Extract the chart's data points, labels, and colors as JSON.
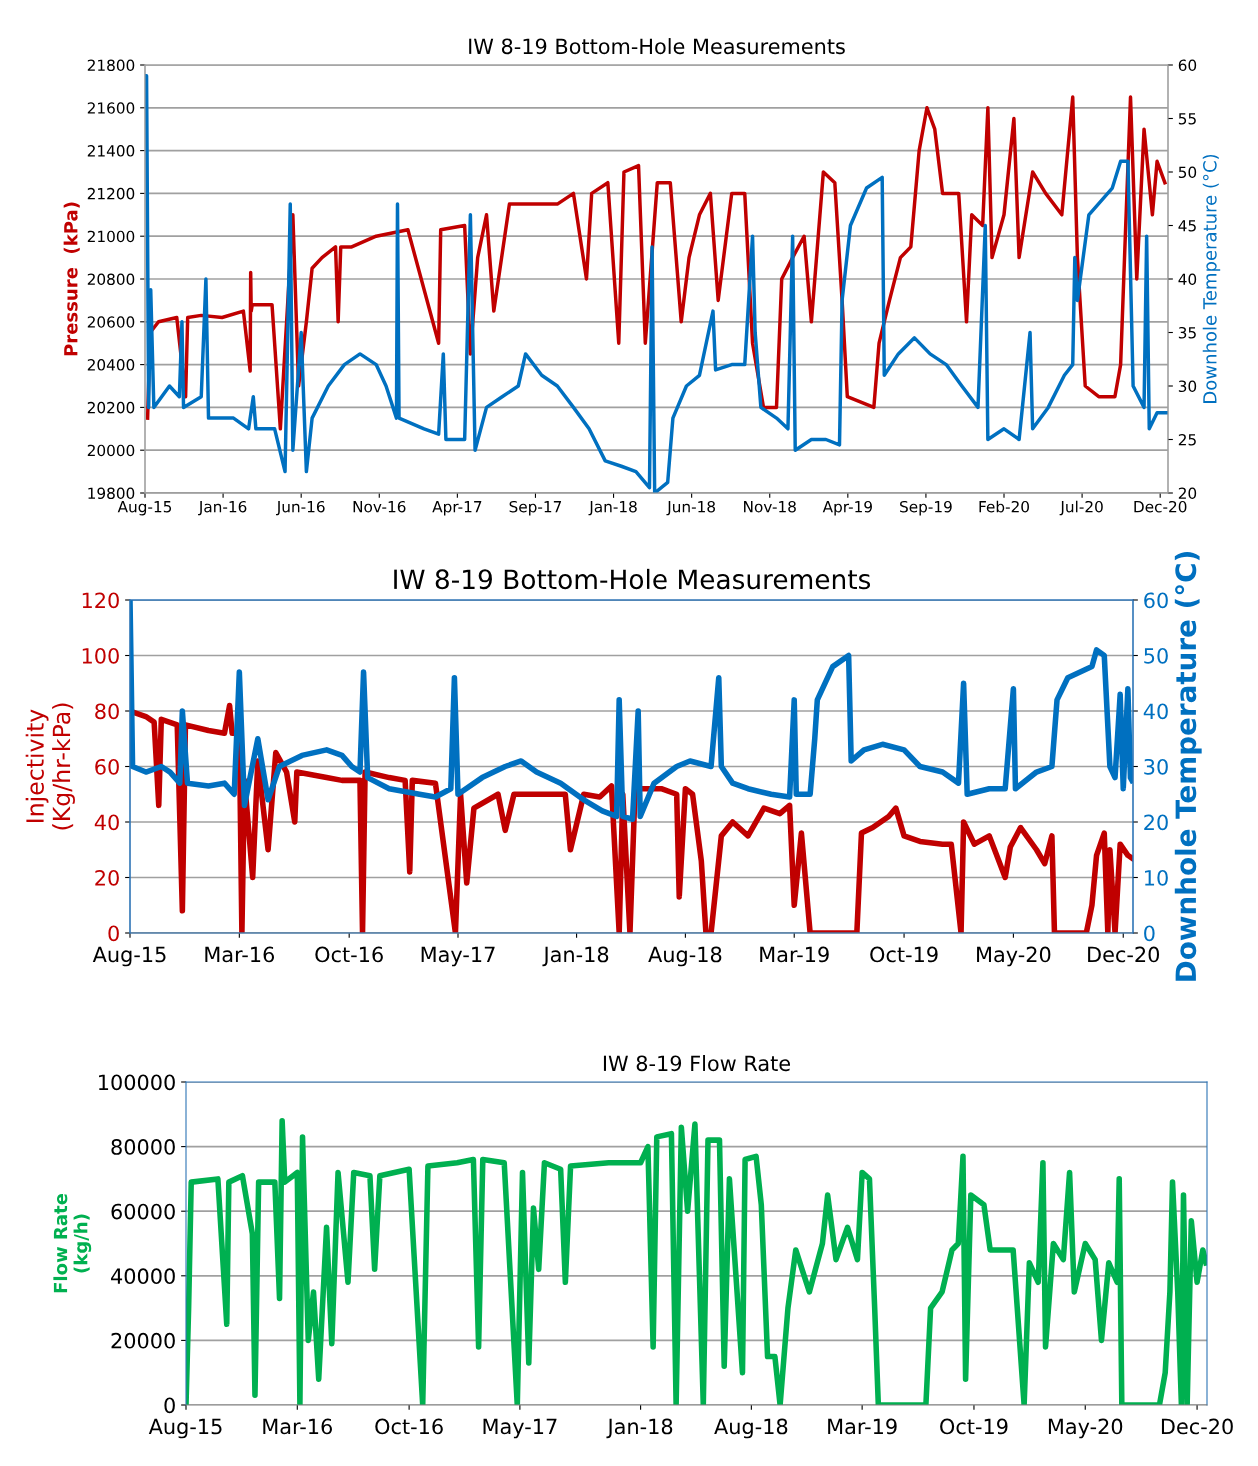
{
  "chart_data": [
    {
      "type": "line",
      "title": "IW 8-19 Bottom-Hole Measurements",
      "ylabel": "Pressure  (kPa)",
      "y2label": "Downhole Temperature (°C)",
      "grid": "y",
      "xlim": [
        "2015-08-15",
        "2020-12-31"
      ],
      "xticks": [
        {
          "value": "2015-08-15",
          "label": "Aug-15"
        },
        {
          "value": "2016-01-12",
          "label": "Jan-16"
        },
        {
          "value": "2016-06-10",
          "label": "Jun-16"
        },
        {
          "value": "2016-11-07",
          "label": "Nov-16"
        },
        {
          "value": "2017-04-06",
          "label": "Apr-17"
        },
        {
          "value": "2017-09-03",
          "label": "Sep-17"
        },
        {
          "value": "2018-01-31",
          "label": "Jan-18"
        },
        {
          "value": "2018-06-30",
          "label": "Jun-18"
        },
        {
          "value": "2018-11-27",
          "label": "Nov-18"
        },
        {
          "value": "2019-04-26",
          "label": "Apr-19"
        },
        {
          "value": "2019-09-23",
          "label": "Sep-19"
        },
        {
          "value": "2020-02-20",
          "label": "Feb-20"
        },
        {
          "value": "2020-07-19",
          "label": "Jul-20"
        },
        {
          "value": "2020-12-16",
          "label": "Dec-20"
        }
      ],
      "ylim": [
        19800,
        21800
      ],
      "yticks": [
        19800,
        20000,
        20200,
        20400,
        20600,
        20800,
        21000,
        21200,
        21400,
        21600,
        21800
      ],
      "y2lim": [
        20,
        60
      ],
      "y2ticks": [
        20,
        25,
        30,
        35,
        40,
        45,
        50,
        55,
        60
      ],
      "series": [
        {
          "color": "#c00000",
          "x": [
            "2015-08-20",
            "2015-08-25",
            "2015-09-10",
            "2015-10-15",
            "2015-11-01",
            "2015-11-05",
            "2015-12-01",
            "2016-01-10",
            "2016-02-20",
            "2016-03-04",
            "2016-03-05",
            "2016-03-06",
            "2016-03-08",
            "2016-04-15",
            "2016-05-01",
            "2016-05-25",
            "2016-06-05",
            "2016-06-20",
            "2016-07-01",
            "2016-07-20",
            "2016-08-15",
            "2016-08-20",
            "2016-08-25",
            "2016-09-15",
            "2016-11-01",
            "2017-01-01",
            "2017-03-01",
            "2017-03-05",
            "2017-04-20",
            "2017-05-01",
            "2017-05-15",
            "2017-06-01",
            "2017-06-15",
            "2017-07-15",
            "2017-08-15",
            "2017-09-15",
            "2017-10-15",
            "2017-11-15",
            "2017-12-10",
            "2017-12-20",
            "2018-01-20",
            "2018-02-10",
            "2018-02-20",
            "2018-03-20",
            "2018-04-02",
            "2018-04-25",
            "2018-05-20",
            "2018-06-10",
            "2018-06-25",
            "2018-07-15",
            "2018-08-05",
            "2018-08-20",
            "2018-09-15",
            "2018-10-10",
            "2018-10-25",
            "2018-11-15",
            "2018-12-10",
            "2018-12-20",
            "2019-01-10",
            "2019-02-01",
            "2019-02-15",
            "2019-03-10",
            "2019-04-01",
            "2019-04-15",
            "2019-04-25",
            "2019-06-15",
            "2019-06-25",
            "2019-07-15",
            "2019-08-05",
            "2019-08-25",
            "2019-09-10",
            "2019-09-25",
            "2019-10-10",
            "2019-10-25",
            "2019-11-25",
            "2019-12-10",
            "2019-12-20",
            "2020-01-10",
            "2020-01-20",
            "2020-01-28",
            "2020-02-20",
            "2020-03-10",
            "2020-03-20",
            "2020-04-15",
            "2020-05-10",
            "2020-06-10",
            "2020-07-01",
            "2020-07-10",
            "2020-07-25",
            "2020-08-20",
            "2020-09-20",
            "2020-10-01",
            "2020-10-10",
            "2020-10-20",
            "2020-11-01",
            "2020-11-15",
            "2020-12-01",
            "2020-12-10",
            "2020-12-25"
          ],
          "values": [
            20150,
            20550,
            20600,
            20620,
            20250,
            20620,
            20630,
            20620,
            20650,
            20370,
            20830,
            20650,
            20680,
            20680,
            20100,
            21100,
            20300,
            20600,
            20850,
            20900,
            20950,
            20600,
            20950,
            20950,
            21000,
            21030,
            20500,
            21030,
            21050,
            20450,
            20900,
            21100,
            20650,
            21150,
            21150,
            21150,
            21150,
            21200,
            20800,
            21200,
            21250,
            20500,
            21300,
            21330,
            20500,
            21250,
            21250,
            20600,
            20900,
            21100,
            21200,
            20700,
            21200,
            21200,
            20500,
            20200,
            20200,
            20800,
            20900,
            21000,
            20600,
            21300,
            21250,
            20700,
            20250,
            20200,
            20500,
            20700,
            20900,
            20950,
            21400,
            21600,
            21500,
            21200,
            21200,
            20600,
            21100,
            21050,
            21600,
            20900,
            21100,
            21550,
            20900,
            21300,
            21200,
            21100,
            21650,
            20900,
            20300,
            20250,
            20250,
            20400,
            21000,
            21650,
            20800,
            21500,
            21100,
            21350,
            21250
          ]
        },
        {
          "color": "#0070c0",
          "axis": "y2",
          "x": [
            "2015-08-15",
            "2015-08-18",
            "2015-08-22",
            "2015-08-26",
            "2015-09-01",
            "2015-10-01",
            "2015-10-20",
            "2015-10-25",
            "2015-10-28",
            "2015-12-01",
            "2015-12-10",
            "2015-12-15",
            "2015-12-20",
            "2016-02-01",
            "2016-03-01",
            "2016-03-10",
            "2016-03-15",
            "2016-04-20",
            "2016-05-10",
            "2016-05-20",
            "2016-05-25",
            "2016-06-10",
            "2016-06-20",
            "2016-07-01",
            "2016-08-01",
            "2016-09-01",
            "2016-10-01",
            "2016-11-01",
            "2016-11-20",
            "2016-12-10",
            "2016-12-12",
            "2016-12-15",
            "2017-02-01",
            "2017-03-01",
            "2017-03-10",
            "2017-03-15",
            "2017-04-20",
            "2017-05-01",
            "2017-05-10",
            "2017-06-01",
            "2017-07-01",
            "2017-08-01",
            "2017-08-15",
            "2017-09-15",
            "2017-10-15",
            "2017-11-15",
            "2017-12-15",
            "2018-01-15",
            "2018-02-15",
            "2018-03-15",
            "2018-04-10",
            "2018-04-15",
            "2018-04-20",
            "2018-05-15",
            "2018-05-25",
            "2018-06-20",
            "2018-07-15",
            "2018-08-10",
            "2018-08-15",
            "2018-09-15",
            "2018-10-10",
            "2018-10-25",
            "2018-10-30",
            "2018-11-10",
            "2018-12-10",
            "2019-01-01",
            "2019-01-10",
            "2019-01-15",
            "2019-02-15",
            "2019-03-15",
            "2019-04-10",
            "2019-04-15",
            "2019-05-01",
            "2019-06-01",
            "2019-07-01",
            "2019-07-05",
            "2019-08-01",
            "2019-09-01",
            "2019-10-01",
            "2019-11-01",
            "2019-12-01",
            "2020-01-01",
            "2020-01-15",
            "2020-01-20",
            "2020-02-20",
            "2020-03-20",
            "2020-04-10",
            "2020-04-15",
            "2020-05-15",
            "2020-06-15",
            "2020-07-01",
            "2020-07-05",
            "2020-07-10",
            "2020-08-01",
            "2020-09-15",
            "2020-10-01",
            "2020-10-15",
            "2020-10-25",
            "2020-11-15",
            "2020-11-20",
            "2020-11-25",
            "2020-12-10",
            "2020-12-28"
          ],
          "values": [
            59,
            59,
            28,
            39,
            28,
            30,
            29,
            36,
            28,
            29,
            40,
            27,
            27,
            27,
            26,
            29,
            26,
            26,
            22,
            47,
            24,
            35,
            22,
            27,
            30,
            32,
            33,
            32,
            30,
            27,
            47,
            27,
            26,
            25.5,
            33,
            25,
            25,
            46,
            24,
            28,
            29,
            30,
            33,
            31,
            30,
            28,
            26,
            23,
            22.5,
            22,
            20.5,
            43,
            20,
            21,
            27,
            30,
            31,
            37,
            31.5,
            32,
            32,
            44,
            35,
            28,
            27,
            26,
            44,
            24,
            25,
            25,
            24.5,
            38,
            45,
            48.5,
            49.5,
            31,
            33,
            34.5,
            33,
            32,
            30,
            28,
            45,
            25,
            26,
            25,
            35,
            26,
            28,
            31,
            32,
            42,
            38,
            46,
            48.5,
            51,
            51,
            30,
            28,
            44,
            26,
            27.5,
            27.5
          ]
        }
      ]
    },
    {
      "type": "line",
      "title": "IW 8-19 Bottom-Hole Measurements",
      "ylabel": "Injectivity\n(Kg/hr-kPa)",
      "y2label": "Downhole Temperature (°C)",
      "grid": "y",
      "xlim": [
        "2015-08-15",
        "2020-12-20"
      ],
      "xticks": [
        {
          "value": "2015-08-15",
          "label": "Aug-15"
        },
        {
          "value": "2016-03-15",
          "label": "Mar-16"
        },
        {
          "value": "2016-10-15",
          "label": "Oct-16"
        },
        {
          "value": "2017-05-15",
          "label": "May-17"
        },
        {
          "value": "2018-01-01",
          "label": "Jan-18"
        },
        {
          "value": "2018-08-01",
          "label": "Aug-18"
        },
        {
          "value": "2019-03-01",
          "label": "Mar-19"
        },
        {
          "value": "2019-10-01",
          "label": "Oct-19"
        },
        {
          "value": "2020-05-01",
          "label": "May-20"
        },
        {
          "value": "2020-12-01",
          "label": "Dec-20"
        }
      ],
      "ylim": [
        0,
        120
      ],
      "yticks": [
        0,
        20,
        40,
        60,
        80,
        100,
        120
      ],
      "y2lim": [
        0,
        60
      ],
      "y2ticks": [
        0,
        10,
        20,
        30,
        40,
        50,
        60
      ],
      "series": [
        {
          "color": "#c00000",
          "x": [
            "2015-08-15",
            "2015-09-15",
            "2015-10-01",
            "2015-10-10",
            "2015-10-15",
            "2015-11-15",
            "2015-11-25",
            "2015-12-01",
            "2016-01-15",
            "2016-02-15",
            "2016-02-25",
            "2016-03-01",
            "2016-03-15",
            "2016-03-20",
            "2016-03-25",
            "2016-04-10",
            "2016-04-20",
            "2016-05-10",
            "2016-05-25",
            "2016-06-15",
            "2016-07-01",
            "2016-07-05",
            "2016-09-01",
            "2016-10-01",
            "2016-11-05",
            "2016-11-10",
            "2016-11-15",
            "2017-01-01",
            "2017-02-01",
            "2017-02-10",
            "2017-02-15",
            "2017-04-01",
            "2017-05-10",
            "2017-05-20",
            "2017-06-01",
            "2017-06-15",
            "2017-08-01",
            "2017-08-15",
            "2017-09-01",
            "2017-11-01",
            "2017-12-10",
            "2017-12-20",
            "2018-01-15",
            "2018-02-15",
            "2018-03-10",
            "2018-03-25",
            "2018-04-01",
            "2018-04-15",
            "2018-04-25",
            "2018-06-15",
            "2018-07-15",
            "2018-07-20",
            "2018-08-01",
            "2018-08-15",
            "2018-09-01",
            "2018-09-10",
            "2018-09-20",
            "2018-10-10",
            "2018-11-01",
            "2018-12-01",
            "2019-01-01",
            "2019-02-01",
            "2019-02-20",
            "2019-03-01",
            "2019-03-15",
            "2019-04-01",
            "2019-06-01",
            "2019-07-01",
            "2019-07-10",
            "2019-08-01",
            "2019-09-01",
            "2019-09-15",
            "2019-10-01",
            "2019-11-01",
            "2019-12-15",
            "2020-01-01",
            "2020-01-20",
            "2020-01-25",
            "2020-02-15",
            "2020-03-15",
            "2020-04-15",
            "2020-04-25",
            "2020-05-15",
            "2020-06-15",
            "2020-07-01",
            "2020-07-15",
            "2020-07-20",
            "2020-09-20",
            "2020-10-01",
            "2020-10-10",
            "2020-10-25",
            "2020-11-01",
            "2020-11-05",
            "2020-11-15",
            "2020-11-25",
            "2020-12-10",
            "2020-12-18"
          ],
          "values": [
            80,
            78,
            76,
            46,
            77,
            75,
            8,
            75,
            73,
            72,
            82,
            72,
            72,
            0,
            55,
            20,
            62,
            30,
            65,
            58,
            40,
            58,
            56,
            55,
            55,
            0,
            58,
            56,
            55,
            22,
            55,
            54,
            0,
            50,
            18,
            45,
            50,
            37,
            50,
            50,
            50,
            30,
            50,
            49,
            53,
            0,
            50,
            0,
            52,
            52,
            50,
            13,
            52,
            50,
            26,
            0,
            0,
            35,
            40,
            35,
            45,
            43,
            46,
            10,
            36,
            0,
            0,
            0,
            36,
            38,
            42,
            45,
            35,
            33,
            32,
            32,
            0,
            40,
            32,
            35,
            20,
            31,
            38,
            30,
            25,
            35,
            0,
            0,
            10,
            28,
            36,
            0,
            30,
            0,
            32,
            28,
            27
          ]
        },
        {
          "color": "#0070c0",
          "axis": "y2",
          "x": [
            "2015-08-15",
            "2015-08-20",
            "2015-09-15",
            "2015-10-15",
            "2015-11-01",
            "2015-11-20",
            "2015-11-25",
            "2015-12-05",
            "2016-01-15",
            "2016-02-15",
            "2016-03-05",
            "2016-03-15",
            "2016-03-25",
            "2016-04-20",
            "2016-05-10",
            "2016-06-01",
            "2016-07-15",
            "2016-09-01",
            "2016-10-01",
            "2016-10-20",
            "2016-11-05",
            "2016-11-12",
            "2016-11-20",
            "2017-01-01",
            "2017-03-01",
            "2017-04-01",
            "2017-05-01",
            "2017-05-08",
            "2017-05-15",
            "2017-07-01",
            "2017-08-15",
            "2017-09-15",
            "2017-10-15",
            "2017-12-01",
            "2018-01-15",
            "2018-02-20",
            "2018-03-20",
            "2018-03-25",
            "2018-04-01",
            "2018-04-20",
            "2018-05-01",
            "2018-05-05",
            "2018-06-01",
            "2018-07-15",
            "2018-08-10",
            "2018-09-20",
            "2018-10-05",
            "2018-10-10",
            "2018-11-01",
            "2018-12-01",
            "2019-01-15",
            "2019-02-20",
            "2019-03-01",
            "2019-03-05",
            "2019-04-01",
            "2019-04-10",
            "2019-04-15",
            "2019-05-15",
            "2019-06-15",
            "2019-06-20",
            "2019-07-15",
            "2019-08-20",
            "2019-10-01",
            "2019-11-01",
            "2019-12-15",
            "2020-01-15",
            "2020-01-25",
            "2020-02-01",
            "2020-03-15",
            "2020-04-15",
            "2020-05-01",
            "2020-05-05",
            "2020-06-15",
            "2020-07-15",
            "2020-07-25",
            "2020-08-15",
            "2020-10-01",
            "2020-10-10",
            "2020-10-25",
            "2020-11-05",
            "2020-11-15",
            "2020-11-25",
            "2020-12-01",
            "2020-12-10",
            "2020-12-15",
            "2020-12-18"
          ],
          "values": [
            60,
            30,
            29,
            30,
            29,
            27,
            40,
            27,
            26.5,
            27,
            25,
            47,
            23,
            35,
            24,
            30,
            32,
            33,
            32,
            30,
            29,
            47,
            28,
            26,
            25,
            24.5,
            26,
            46,
            25,
            28,
            30,
            31,
            29,
            27,
            24,
            22,
            21,
            42,
            21,
            20.5,
            40,
            21,
            27,
            30,
            31,
            30,
            46,
            30,
            27,
            26,
            25,
            24.5,
            42,
            25,
            25,
            35,
            42,
            48,
            50,
            31,
            33,
            34,
            33,
            30,
            29,
            27,
            45,
            25,
            26,
            26,
            44,
            26,
            29,
            30,
            42,
            46,
            48,
            51,
            50,
            30,
            28,
            43,
            26,
            44,
            28,
            27.5
          ]
        }
      ]
    },
    {
      "type": "line",
      "title": "IW 8-19 Flow Rate",
      "ylabel": "Flow Rate\n(kg/h)",
      "grid": "y",
      "xlim": [
        "2015-08-15",
        "2020-12-20"
      ],
      "xticks": [
        {
          "value": "2015-08-15",
          "label": "Aug-15"
        },
        {
          "value": "2016-03-15",
          "label": "Mar-16"
        },
        {
          "value": "2016-10-15",
          "label": "Oct-16"
        },
        {
          "value": "2017-05-15",
          "label": "May-17"
        },
        {
          "value": "2018-01-01",
          "label": "Jan-18"
        },
        {
          "value": "2018-08-01",
          "label": "Aug-18"
        },
        {
          "value": "2019-03-01",
          "label": "Mar-19"
        },
        {
          "value": "2019-10-01",
          "label": "Oct-19"
        },
        {
          "value": "2020-05-01",
          "label": "May-20"
        },
        {
          "value": "2020-12-01",
          "label": "Dec-20"
        }
      ],
      "ylim": [
        0,
        100000
      ],
      "yticks": [
        0,
        20000,
        40000,
        60000,
        80000,
        100000
      ],
      "series": [
        {
          "color": "#00b050",
          "x": [
            "2015-08-15",
            "2015-08-20",
            "2015-08-25",
            "2015-10-15",
            "2015-11-01",
            "2015-11-05",
            "2015-12-01",
            "2015-12-20",
            "2015-12-25",
            "2016-01-01",
            "2016-02-01",
            "2016-02-10",
            "2016-02-15",
            "2016-02-20",
            "2016-03-15",
            "2016-03-20",
            "2016-03-25",
            "2016-04-05",
            "2016-04-15",
            "2016-04-25",
            "2016-05-10",
            "2016-05-20",
            "2016-06-01",
            "2016-06-20",
            "2016-07-01",
            "2016-08-01",
            "2016-08-10",
            "2016-08-20",
            "2016-10-15",
            "2016-11-10",
            "2016-11-20",
            "2017-01-15",
            "2017-02-15",
            "2017-02-25",
            "2017-03-05",
            "2017-04-15",
            "2017-05-10",
            "2017-05-20",
            "2017-06-01",
            "2017-06-10",
            "2017-06-20",
            "2017-07-01",
            "2017-08-01",
            "2017-08-10",
            "2017-08-20",
            "2017-11-01",
            "2018-01-01",
            "2018-01-15",
            "2018-01-25",
            "2018-02-01",
            "2018-03-01",
            "2018-03-10",
            "2018-03-20",
            "2018-04-01",
            "2018-04-15",
            "2018-05-01",
            "2018-05-10",
            "2018-06-01",
            "2018-06-10",
            "2018-06-20",
            "2018-07-15",
            "2018-07-20",
            "2018-08-10",
            "2018-08-20",
            "2018-09-01",
            "2018-09-15",
            "2018-09-25",
            "2018-10-10",
            "2018-10-25",
            "2018-11-20",
            "2018-12-15",
            "2018-12-25",
            "2019-01-10",
            "2019-02-01",
            "2019-02-20",
            "2019-03-01",
            "2019-03-15",
            "2019-03-25",
            "2019-04-01",
            "2019-07-01",
            "2019-07-10",
            "2019-08-01",
            "2019-08-20",
            "2019-09-01",
            "2019-09-10",
            "2019-09-15",
            "2019-09-25",
            "2019-10-20",
            "2019-11-01",
            "2019-12-15",
            "2020-01-05",
            "2020-01-15",
            "2020-02-01",
            "2020-02-10",
            "2020-02-15",
            "2020-03-01",
            "2020-03-20",
            "2020-04-01",
            "2020-04-10",
            "2020-05-01",
            "2020-05-20",
            "2020-06-01",
            "2020-06-15",
            "2020-07-01",
            "2020-07-05",
            "2020-07-10",
            "2020-09-20",
            "2020-10-01",
            "2020-10-10",
            "2020-10-15",
            "2020-10-25",
            "2020-11-01",
            "2020-11-05",
            "2020-11-12",
            "2020-11-20",
            "2020-12-01",
            "2020-12-12",
            "2020-12-18"
          ],
          "values": [
            0,
            30000,
            69000,
            70000,
            25000,
            69000,
            71000,
            53000,
            3000,
            69000,
            69000,
            33000,
            88000,
            69000,
            72000,
            0,
            83000,
            20000,
            35000,
            8000,
            55000,
            19000,
            72000,
            38000,
            72000,
            71000,
            42000,
            71000,
            73000,
            0,
            74000,
            75000,
            76000,
            18000,
            76000,
            75000,
            0,
            72000,
            13000,
            61000,
            42000,
            75000,
            73000,
            38000,
            74000,
            75000,
            75000,
            80000,
            18000,
            83000,
            84000,
            0,
            86000,
            60000,
            87000,
            0,
            82000,
            82000,
            12000,
            70000,
            10000,
            76000,
            77000,
            62000,
            15000,
            15000,
            0,
            30000,
            48000,
            35000,
            50000,
            65000,
            45000,
            55000,
            45000,
            72000,
            70000,
            30000,
            0,
            0,
            30000,
            35000,
            48000,
            50000,
            77000,
            8000,
            65000,
            62000,
            48000,
            48000,
            0,
            44000,
            38000,
            75000,
            18000,
            50000,
            45000,
            72000,
            35000,
            50000,
            45000,
            20000,
            44000,
            38000,
            70000,
            0,
            0,
            10000,
            35000,
            69000,
            35000,
            0,
            65000,
            0,
            57000,
            38000,
            48000,
            44000
          ]
        }
      ]
    }
  ]
}
